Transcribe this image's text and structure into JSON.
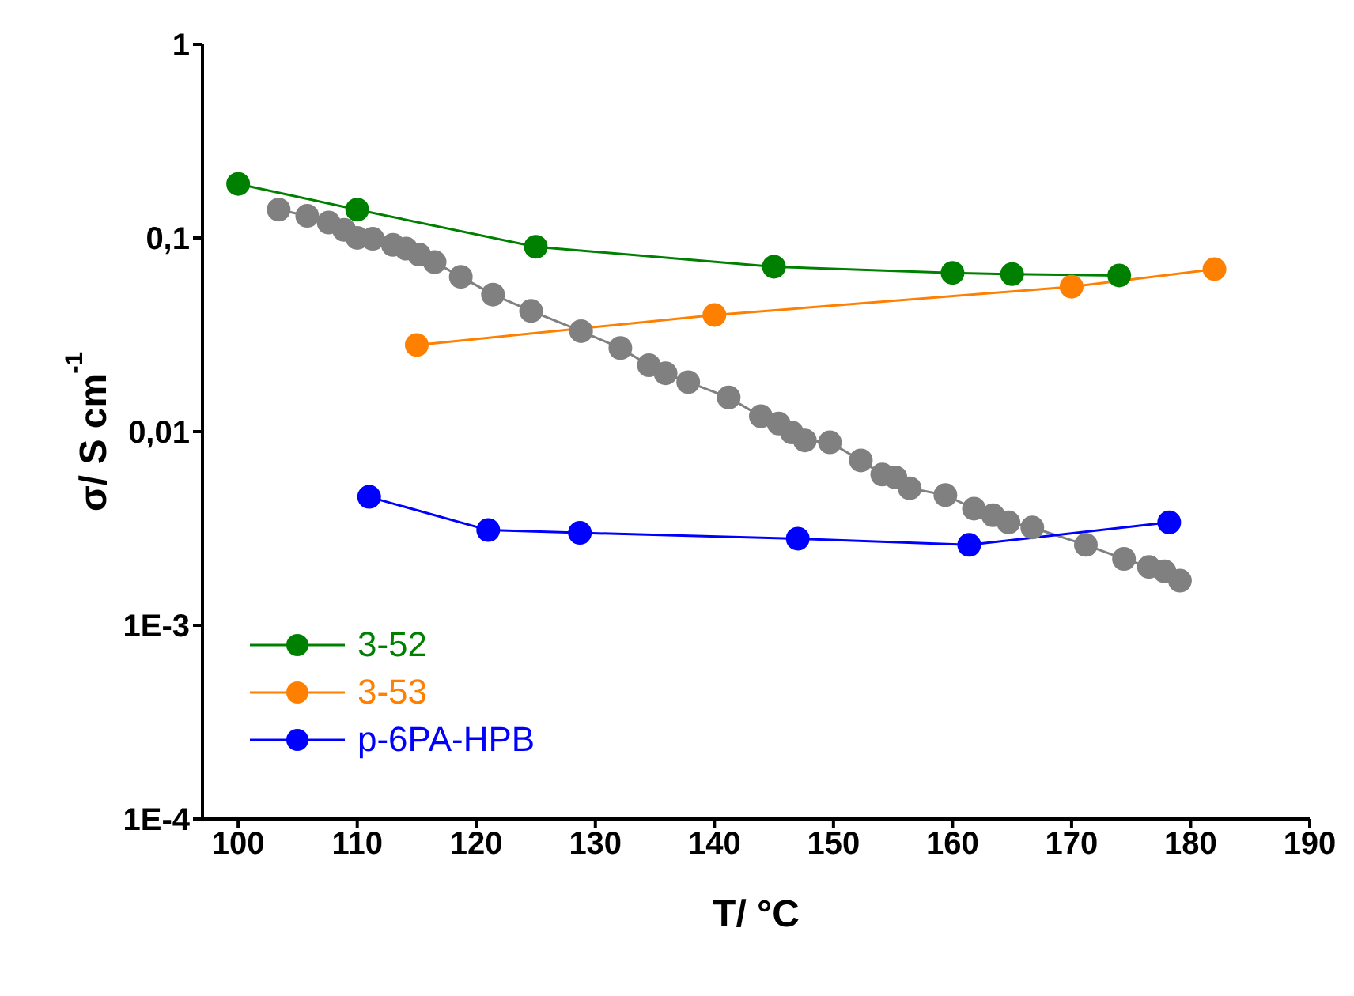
{
  "chart_data": {
    "type": "line",
    "xlabel": "T/ °C",
    "ylabel": "σ/ S cm$^{-1}$",
    "log": "y",
    "marker": "circle",
    "line_style": "solid",
    "legend": "bottom left",
    "xlim": [
      97,
      190
    ],
    "xticks": [
      100,
      110,
      120,
      130,
      140,
      150,
      160,
      170,
      180,
      190
    ],
    "ylim": [
      0.0001,
      1
    ],
    "yticks": [
      {
        "value": 0.0001,
        "label": "1E-4"
      },
      {
        "value": 0.001,
        "label": "1E-3"
      },
      {
        "value": 0.01,
        "label": "0,01"
      },
      {
        "value": 0.1,
        "label": "0,1"
      },
      {
        "value": 1,
        "label": "1"
      }
    ],
    "series": [
      {
        "name": "3-52",
        "color": "#008000",
        "x": [
          100,
          110,
          125,
          145,
          160,
          165,
          174
        ],
        "values": [
          0.19,
          0.14,
          0.09,
          0.071,
          0.066,
          0.065,
          0.064
        ]
      },
      {
        "color": "#808080",
        "x": [
          103.4,
          105.8,
          107.6,
          108.9,
          110,
          111.3,
          113,
          114.1,
          115.2,
          116.5,
          118.7,
          121.4,
          124.6,
          128.8,
          132.1,
          134.5,
          135.9,
          137.8,
          141.2,
          143.9,
          145.4,
          146.5,
          147.6,
          149.7,
          152.3,
          154.1,
          155.2,
          156.4,
          159.4,
          161.8,
          163.4,
          164.7,
          166.7,
          171.2,
          174.4,
          176.5,
          177.8,
          179.1
        ],
        "values": [
          0.14,
          0.13,
          0.12,
          0.11,
          0.1,
          0.099,
          0.092,
          0.088,
          0.082,
          0.075,
          0.063,
          0.051,
          0.042,
          0.033,
          0.027,
          0.022,
          0.02,
          0.018,
          0.015,
          0.012,
          0.011,
          0.0099,
          0.009,
          0.0088,
          0.0071,
          0.006,
          0.0058,
          0.0051,
          0.0047,
          0.004,
          0.0037,
          0.0034,
          0.0032,
          0.0026,
          0.0022,
          0.002,
          0.0019,
          0.0017
        ]
      },
      {
        "name": "3-53",
        "color": "#ff8000",
        "x": [
          115,
          140,
          170,
          182
        ],
        "values": [
          0.028,
          0.04,
          0.056,
          0.069
        ]
      },
      {
        "name": "p-6PA-HPB",
        "color": "#0000ff",
        "x": [
          111,
          121,
          128.7,
          147,
          161.4,
          178.2
        ],
        "values": [
          0.0046,
          0.0031,
          0.003,
          0.0028,
          0.0026,
          0.0034
        ]
      }
    ]
  }
}
